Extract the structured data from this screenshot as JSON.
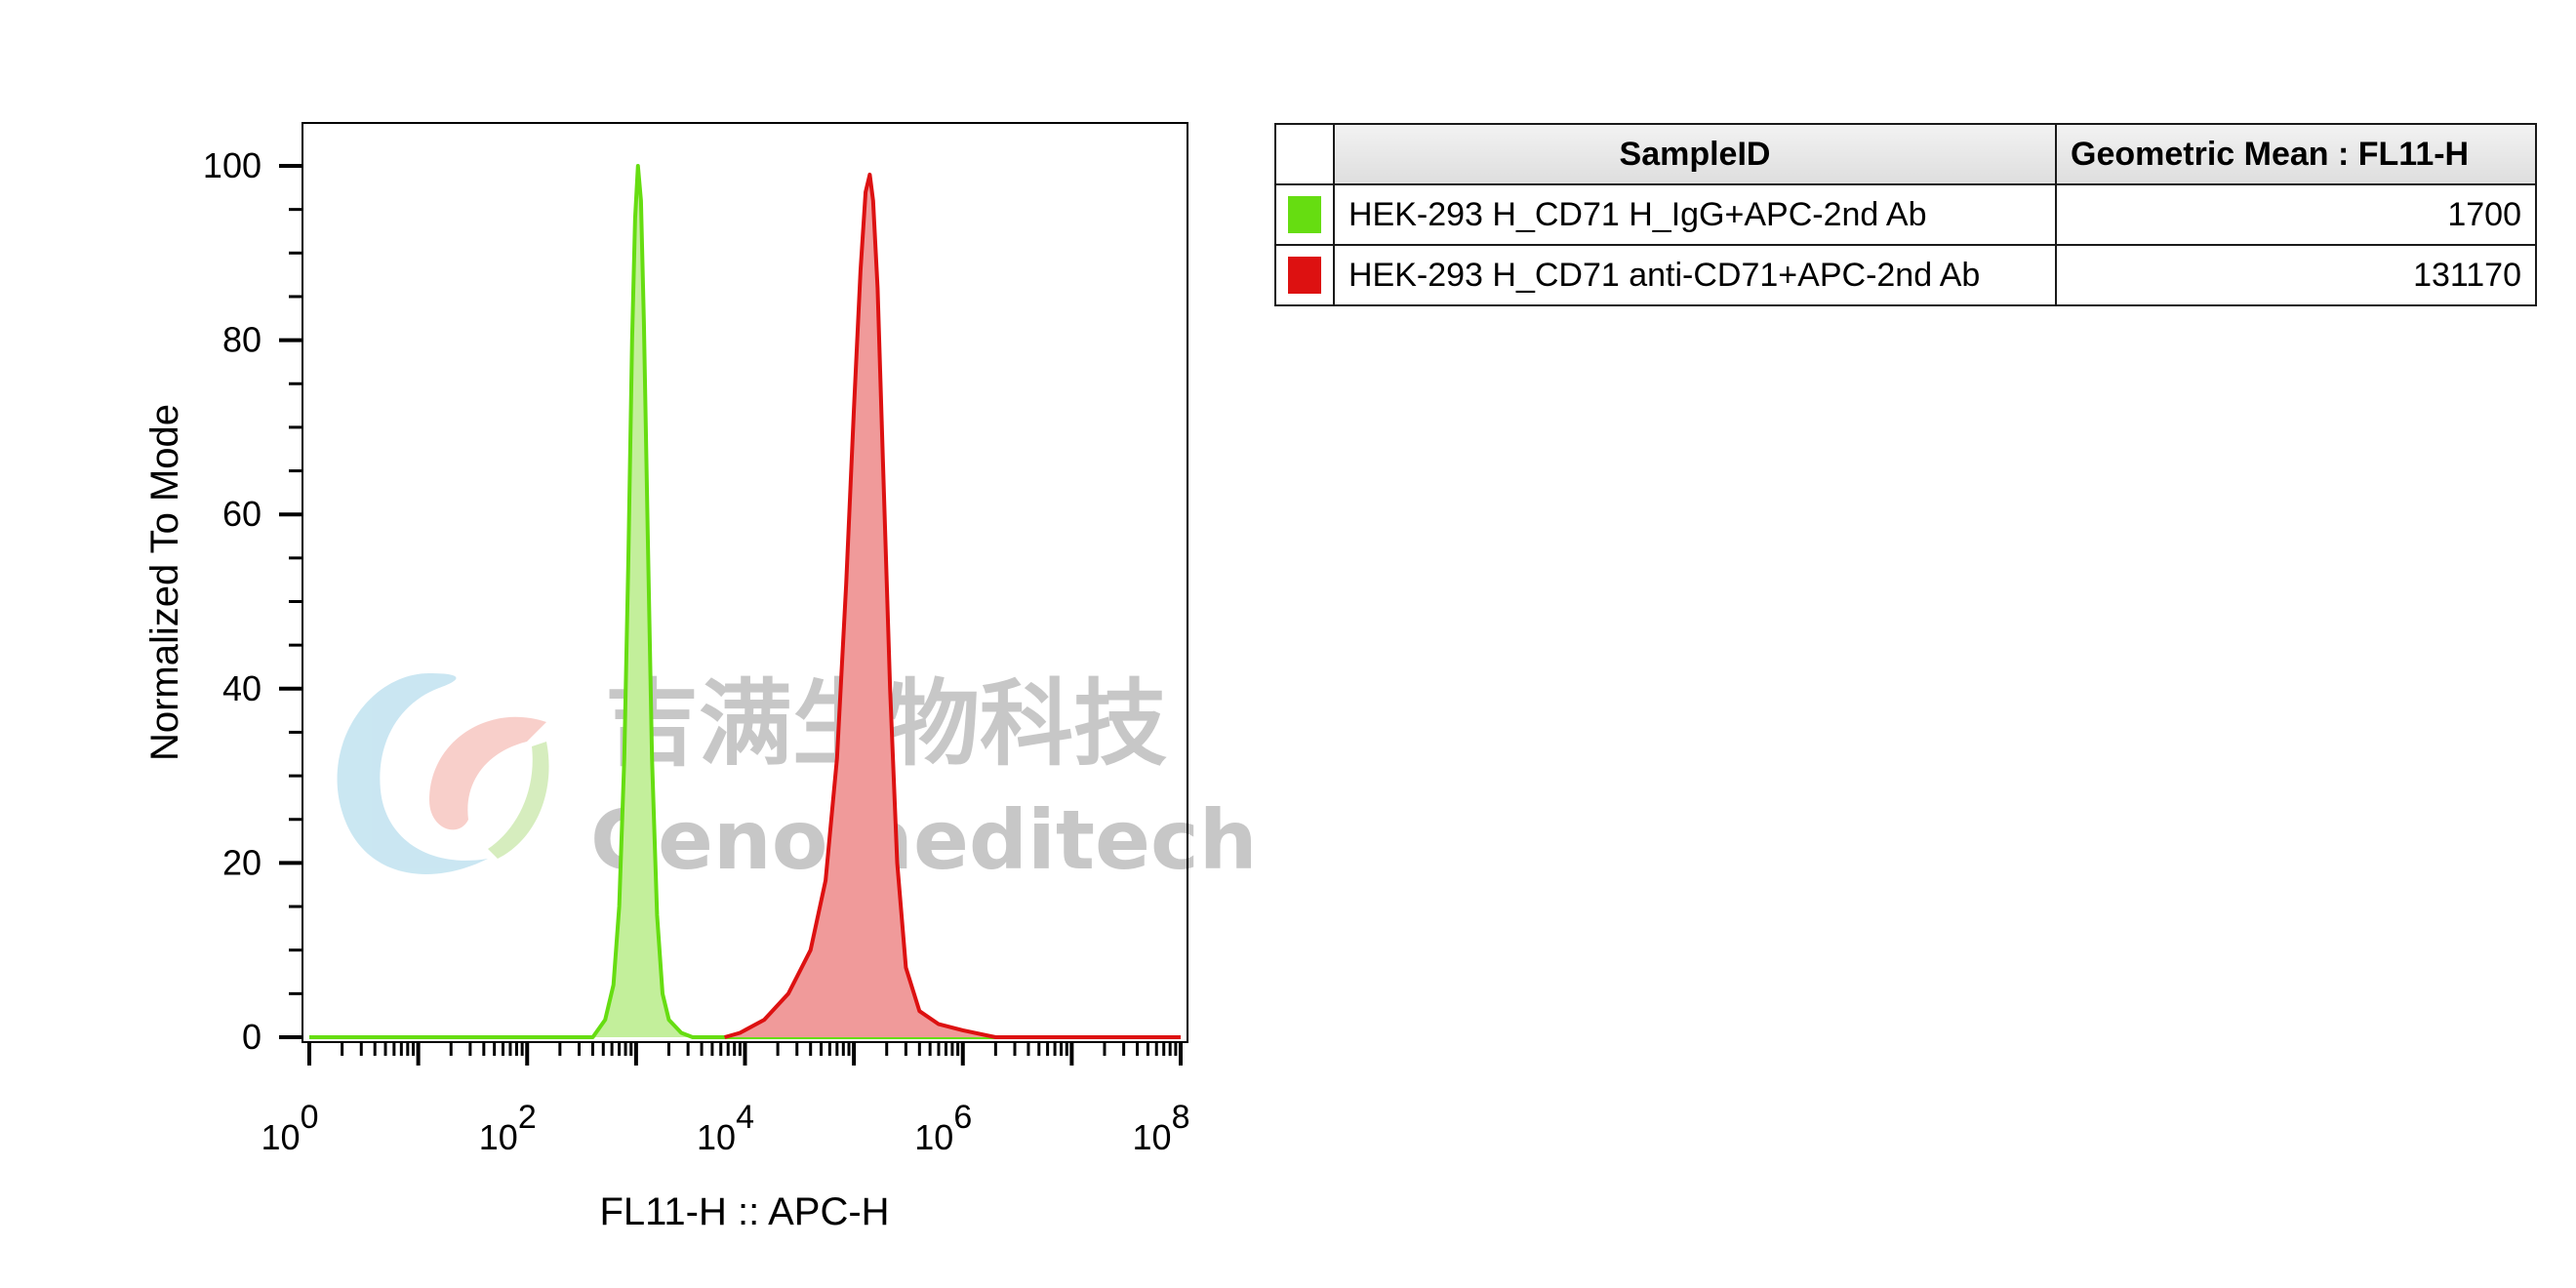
{
  "chart_data": {
    "type": "area",
    "xlabel": "FL11-H :: APC-H",
    "ylabel": "Normalized To Mode",
    "xscale": "log",
    "xlim": [
      1,
      100000000
    ],
    "ylim": [
      0,
      100
    ],
    "x_ticks": [
      {
        "base": "10",
        "exp": "0",
        "value": 1
      },
      {
        "base": "10",
        "exp": "2",
        "value": 100
      },
      {
        "base": "10",
        "exp": "4",
        "value": 10000
      },
      {
        "base": "10",
        "exp": "6",
        "value": 1000000
      },
      {
        "base": "10",
        "exp": "8",
        "value": 100000000
      }
    ],
    "y_ticks": [
      "0",
      "20",
      "40",
      "60",
      "80",
      "100"
    ],
    "series": [
      {
        "name": "HEK-293 H_CD71 H_IgG+APC-2nd Ab",
        "color": "#66dd11",
        "fill": "#c3ef9b",
        "points": [
          [
            1,
            0
          ],
          [
            400,
            0
          ],
          [
            520,
            2
          ],
          [
            620,
            6
          ],
          [
            700,
            15
          ],
          [
            780,
            32
          ],
          [
            850,
            55
          ],
          [
            920,
            80
          ],
          [
            980,
            94
          ],
          [
            1040,
            100
          ],
          [
            1110,
            96
          ],
          [
            1180,
            82
          ],
          [
            1280,
            58
          ],
          [
            1400,
            32
          ],
          [
            1560,
            14
          ],
          [
            1750,
            5
          ],
          [
            2000,
            2
          ],
          [
            2600,
            0.5
          ],
          [
            3300,
            0
          ],
          [
            100000000,
            0
          ]
        ]
      },
      {
        "name": "HEK-293 H_CD71 anti-CD71+APC-2nd Ab",
        "color": "#dd1111",
        "fill": "#f09a9a",
        "points": [
          [
            6500,
            0
          ],
          [
            9000,
            0.5
          ],
          [
            15000,
            2
          ],
          [
            25000,
            5
          ],
          [
            40000,
            10
          ],
          [
            55000,
            18
          ],
          [
            70000,
            32
          ],
          [
            85000,
            52
          ],
          [
            100000,
            72
          ],
          [
            115000,
            88
          ],
          [
            128000,
            97
          ],
          [
            140000,
            99
          ],
          [
            150000,
            96
          ],
          [
            165000,
            86
          ],
          [
            185000,
            66
          ],
          [
            215000,
            40
          ],
          [
            250000,
            20
          ],
          [
            300000,
            8
          ],
          [
            400000,
            3
          ],
          [
            600000,
            1.5
          ],
          [
            1000000,
            0.8
          ],
          [
            2000000,
            0
          ],
          [
            100000000,
            0
          ]
        ]
      }
    ]
  },
  "table": {
    "headers": [
      "SampleID",
      "Geometric Mean : FL11-H"
    ],
    "rows": [
      {
        "sample": "HEK-293 H_CD71 H_IgG+APC-2nd Ab",
        "value": "1700",
        "color": "#66dd11"
      },
      {
        "sample": "HEK-293 H_CD71 anti-CD71+APC-2nd Ab",
        "value": "131170",
        "color": "#dd1111"
      }
    ]
  },
  "watermark": {
    "company_cn": "吉满生物科技",
    "company_en": "Genomeditech"
  }
}
